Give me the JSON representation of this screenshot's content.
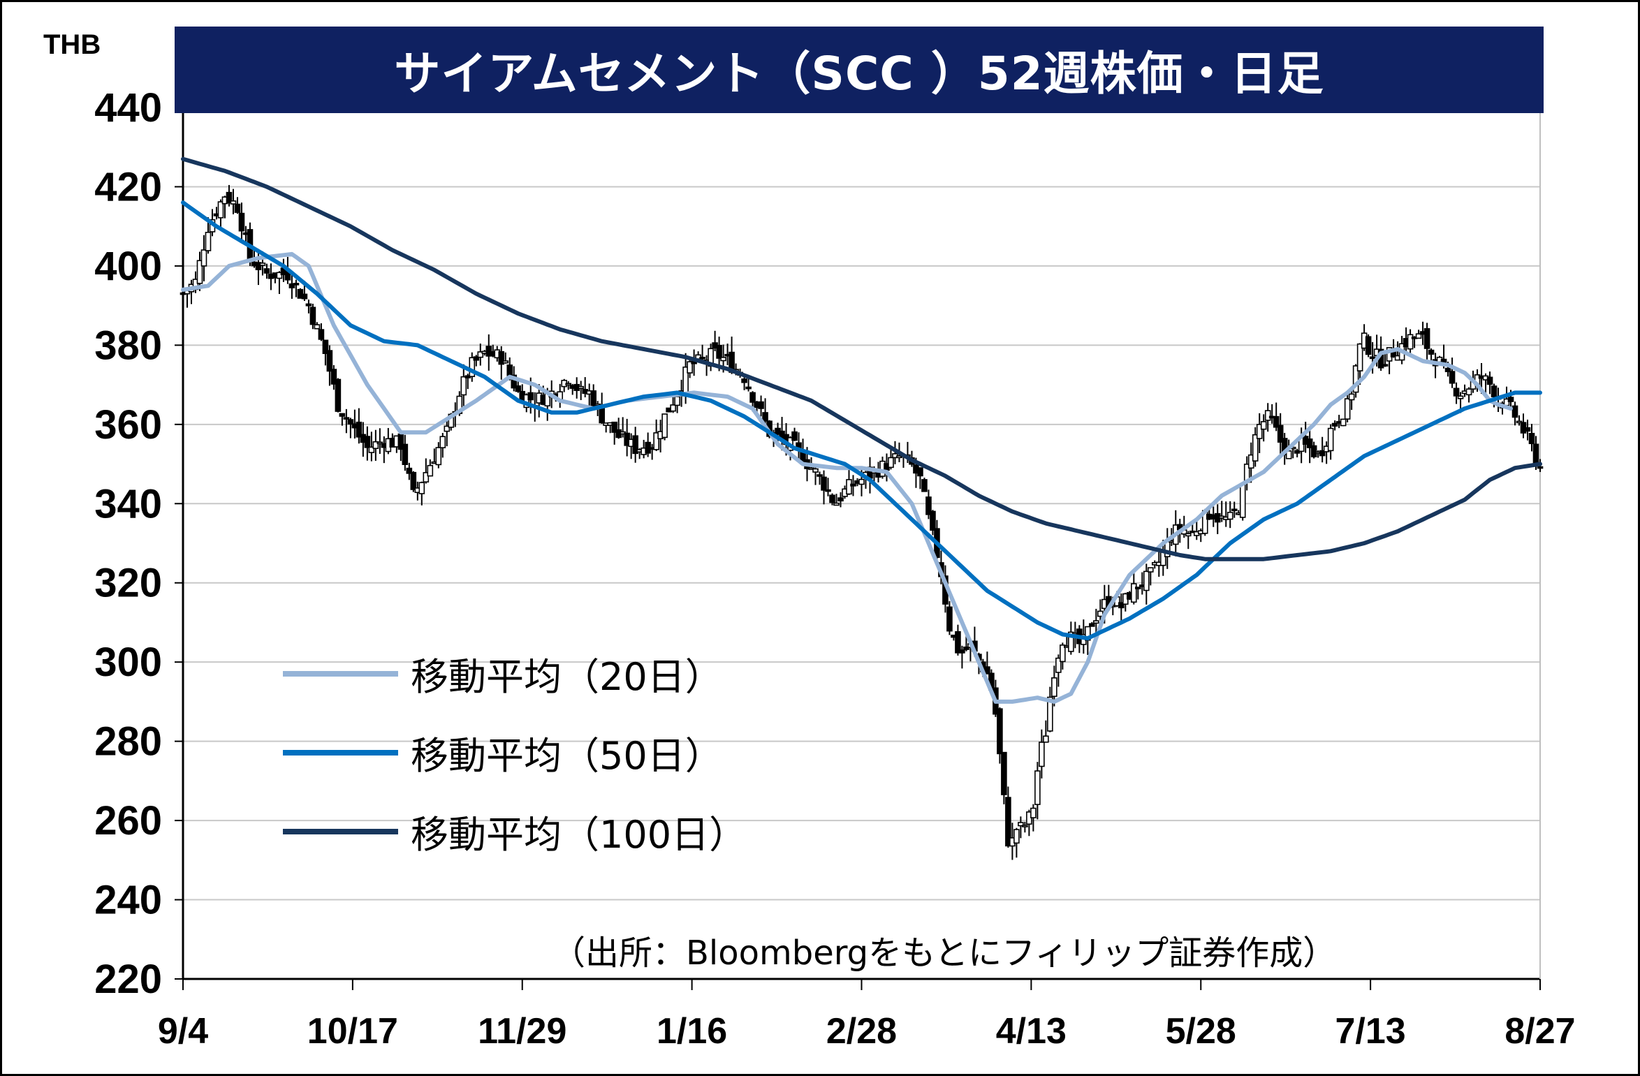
{
  "chart_data": {
    "type": "line",
    "title": "サイアムセメント（SCC ）52週株価・日足",
    "unit_label": "THB",
    "ylim": [
      220,
      440
    ],
    "yticks": [
      220,
      240,
      260,
      280,
      300,
      320,
      340,
      360,
      380,
      400,
      420,
      440
    ],
    "x_tick_labels": [
      "9/4",
      "10/17",
      "11/29",
      "1/16",
      "2/28",
      "4/13",
      "5/28",
      "7/13",
      "8/27"
    ],
    "grid": true,
    "legend_position": "center-left",
    "n_days": 255,
    "candles_close_anchors": [
      [
        0,
        393
      ],
      [
        3,
        396
      ],
      [
        6,
        410
      ],
      [
        10,
        418
      ],
      [
        13,
        415
      ],
      [
        16,
        402
      ],
      [
        20,
        398
      ],
      [
        25,
        398
      ],
      [
        30,
        390
      ],
      [
        34,
        378
      ],
      [
        37,
        365
      ],
      [
        40,
        360
      ],
      [
        44,
        354
      ],
      [
        48,
        356
      ],
      [
        52,
        355
      ],
      [
        55,
        342
      ],
      [
        58,
        348
      ],
      [
        60,
        352
      ],
      [
        63,
        358
      ],
      [
        66,
        368
      ],
      [
        69,
        375
      ],
      [
        72,
        378
      ],
      [
        76,
        377
      ],
      [
        80,
        368
      ],
      [
        84,
        366
      ],
      [
        88,
        368
      ],
      [
        92,
        372
      ],
      [
        95,
        368
      ],
      [
        97,
        368
      ],
      [
        100,
        362
      ],
      [
        104,
        357
      ],
      [
        108,
        354
      ],
      [
        112,
        355
      ],
      [
        115,
        362
      ],
      [
        118,
        368
      ],
      [
        121,
        375
      ],
      [
        124,
        376
      ],
      [
        127,
        378
      ],
      [
        130,
        376
      ],
      [
        134,
        372
      ],
      [
        137,
        365
      ],
      [
        140,
        358
      ],
      [
        144,
        356
      ],
      [
        148,
        354
      ],
      [
        152,
        350
      ],
      [
        156,
        344
      ],
      [
        160,
        340
      ],
      [
        163,
        345
      ],
      [
        167,
        348
      ],
      [
        171,
        350
      ],
      [
        175,
        352
      ],
      [
        178,
        353
      ],
      [
        181,
        352
      ],
      [
        184,
        348
      ],
      [
        187,
        335
      ],
      [
        190,
        325
      ],
      [
        193,
        312
      ],
      [
        195,
        302
      ],
      [
        197,
        305
      ],
      [
        199,
        300
      ],
      [
        202,
        305
      ],
      [
        205,
        300
      ],
      [
        208,
        290
      ],
      [
        210,
        275
      ],
      [
        212,
        252
      ],
      [
        214,
        258
      ],
      [
        216,
        262
      ],
      [
        219,
        258
      ],
      [
        221,
        285
      ],
      [
        223,
        302
      ],
      [
        225,
        300
      ],
      [
        228,
        310
      ],
      [
        231,
        308
      ],
      [
        235,
        306
      ],
      [
        238,
        312
      ],
      [
        240,
        315
      ],
      [
        242,
        318
      ]
    ],
    "candles_close_anchors_2": [
      [
        143,
        356
      ],
      [
        147,
        354
      ],
      [
        151,
        350
      ],
      [
        155,
        346
      ],
      [
        159,
        340
      ],
      [
        163,
        344
      ],
      [
        167,
        346
      ],
      [
        171,
        348
      ],
      [
        175,
        350
      ],
      [
        179,
        352
      ],
      [
        182,
        350
      ],
      [
        185,
        346
      ],
      [
        188,
        334
      ],
      [
        191,
        324
      ],
      [
        194,
        308
      ],
      [
        197,
        302
      ],
      [
        200,
        304
      ],
      [
        203,
        300
      ],
      [
        206,
        296
      ],
      [
        208,
        286
      ],
      [
        210,
        268
      ],
      [
        212,
        252
      ],
      [
        214,
        258
      ],
      [
        216,
        258
      ],
      [
        219,
        262
      ],
      [
        221,
        276
      ],
      [
        223,
        282
      ],
      [
        225,
        296
      ],
      [
        228,
        306
      ],
      [
        231,
        306
      ],
      [
        234,
        304
      ],
      [
        237,
        310
      ],
      [
        240,
        314
      ],
      [
        243,
        316
      ],
      [
        246,
        314
      ],
      [
        249,
        318
      ],
      [
        252,
        320
      ],
      [
        255,
        322
      ],
      [
        258,
        326
      ],
      [
        261,
        332
      ],
      [
        264,
        334
      ],
      [
        267,
        332
      ],
      [
        270,
        335
      ],
      [
        273,
        338
      ],
      [
        276,
        336
      ],
      [
        279,
        336
      ],
      [
        282,
        340
      ],
      [
        285,
        353
      ],
      [
        288,
        360
      ],
      [
        291,
        362
      ],
      [
        294,
        356
      ],
      [
        297,
        352
      ],
      [
        300,
        355
      ],
      [
        303,
        354
      ],
      [
        306,
        352
      ],
      [
        309,
        358
      ],
      [
        312,
        362
      ],
      [
        315,
        365
      ],
      [
        317,
        374
      ],
      [
        319,
        382
      ],
      [
        322,
        378
      ],
      [
        325,
        376
      ],
      [
        328,
        378
      ],
      [
        331,
        380
      ],
      [
        334,
        382
      ],
      [
        337,
        382
      ],
      [
        340,
        378
      ],
      [
        343,
        375
      ],
      [
        346,
        370
      ],
      [
        349,
        368
      ],
      [
        352,
        370
      ],
      [
        355,
        372
      ],
      [
        358,
        370
      ],
      [
        361,
        366
      ],
      [
        364,
        364
      ],
      [
        367,
        360
      ],
      [
        370,
        355
      ],
      [
        373,
        349
      ]
    ],
    "ma20_anchors": [
      [
        0,
        394
      ],
      [
        6,
        395
      ],
      [
        11,
        400
      ],
      [
        18,
        402
      ],
      [
        26,
        403
      ],
      [
        30,
        400
      ],
      [
        36,
        385
      ],
      [
        44,
        370
      ],
      [
        52,
        358
      ],
      [
        58,
        358
      ],
      [
        64,
        362
      ],
      [
        70,
        366
      ],
      [
        78,
        372
      ],
      [
        84,
        370
      ],
      [
        90,
        366
      ],
      [
        98,
        364
      ],
      [
        106,
        366
      ],
      [
        114,
        367
      ],
      [
        122,
        368
      ],
      [
        130,
        367
      ],
      [
        136,
        364
      ],
      [
        142,
        355
      ],
      [
        148,
        350
      ],
      [
        156,
        349
      ],
      [
        162,
        349
      ],
      [
        168,
        348
      ],
      [
        174,
        340
      ],
      [
        180,
        325
      ],
      [
        186,
        310
      ],
      [
        190,
        300
      ],
      [
        194,
        290
      ],
      [
        198,
        290
      ],
      [
        204,
        291
      ],
      [
        208,
        290
      ],
      [
        212,
        292
      ],
      [
        216,
        300
      ],
      [
        220,
        312
      ],
      [
        226,
        322
      ],
      [
        234,
        330
      ],
      [
        242,
        336
      ],
      [
        248,
        342
      ],
      [
        253,
        345
      ],
      [
        258,
        348
      ],
      [
        262,
        352
      ],
      [
        266,
        356
      ],
      [
        270,
        360
      ],
      [
        274,
        365
      ],
      [
        278,
        368
      ],
      [
        282,
        372
      ],
      [
        286,
        378
      ],
      [
        290,
        379
      ],
      [
        296,
        376
      ],
      [
        302,
        375
      ],
      [
        306,
        373
      ],
      [
        309,
        370
      ],
      [
        312,
        366
      ],
      [
        314,
        365
      ],
      [
        317,
        364
      ]
    ],
    "ma50_anchors": [
      [
        0,
        416
      ],
      [
        8,
        410
      ],
      [
        16,
        405
      ],
      [
        24,
        400
      ],
      [
        32,
        393
      ],
      [
        40,
        385
      ],
      [
        48,
        381
      ],
      [
        56,
        380
      ],
      [
        64,
        376
      ],
      [
        72,
        372
      ],
      [
        80,
        366
      ],
      [
        88,
        363
      ],
      [
        94,
        363
      ],
      [
        102,
        365
      ],
      [
        110,
        367
      ],
      [
        118,
        368
      ],
      [
        126,
        366
      ],
      [
        134,
        362
      ],
      [
        140,
        358
      ],
      [
        146,
        354
      ],
      [
        152,
        352
      ],
      [
        158,
        350
      ],
      [
        164,
        346
      ],
      [
        172,
        338
      ],
      [
        180,
        330
      ],
      [
        186,
        324
      ],
      [
        192,
        318
      ],
      [
        198,
        314
      ],
      [
        204,
        310
      ],
      [
        210,
        307
      ],
      [
        216,
        306
      ],
      [
        220,
        308
      ],
      [
        226,
        311
      ],
      [
        234,
        316
      ],
      [
        242,
        322
      ],
      [
        250,
        330
      ],
      [
        258,
        336
      ],
      [
        266,
        340
      ],
      [
        274,
        346
      ],
      [
        282,
        352
      ],
      [
        290,
        356
      ],
      [
        298,
        360
      ],
      [
        306,
        364
      ],
      [
        312,
        366
      ],
      [
        318,
        368
      ],
      [
        324,
        368
      ]
    ],
    "ma100_anchors": [
      [
        0,
        427
      ],
      [
        10,
        424
      ],
      [
        20,
        420
      ],
      [
        30,
        415
      ],
      [
        40,
        410
      ],
      [
        50,
        404
      ],
      [
        60,
        399
      ],
      [
        70,
        393
      ],
      [
        80,
        388
      ],
      [
        90,
        384
      ],
      [
        100,
        381
      ],
      [
        110,
        379
      ],
      [
        120,
        377
      ],
      [
        130,
        374
      ],
      [
        140,
        370
      ],
      [
        150,
        366
      ],
      [
        158,
        361
      ],
      [
        166,
        356
      ],
      [
        174,
        351
      ],
      [
        182,
        347
      ],
      [
        190,
        342
      ],
      [
        198,
        338
      ],
      [
        206,
        335
      ],
      [
        214,
        333
      ],
      [
        222,
        331
      ],
      [
        230,
        329
      ],
      [
        238,
        327
      ],
      [
        244,
        326
      ],
      [
        250,
        326
      ],
      [
        258,
        326
      ],
      [
        266,
        327
      ],
      [
        274,
        328
      ],
      [
        282,
        330
      ],
      [
        290,
        333
      ],
      [
        298,
        337
      ],
      [
        306,
        341
      ],
      [
        312,
        346
      ],
      [
        318,
        349
      ],
      [
        324,
        350
      ]
    ],
    "series": [
      {
        "name": "移動平均（20日）",
        "color": "#95b3d7"
      },
      {
        "name": "移動平均（50日）",
        "color": "#0070c0"
      },
      {
        "name": "移動平均（100日）",
        "color": "#17365d"
      }
    ]
  },
  "source_note": "（出所：Bloombergをもとにフィリップ証券作成）"
}
